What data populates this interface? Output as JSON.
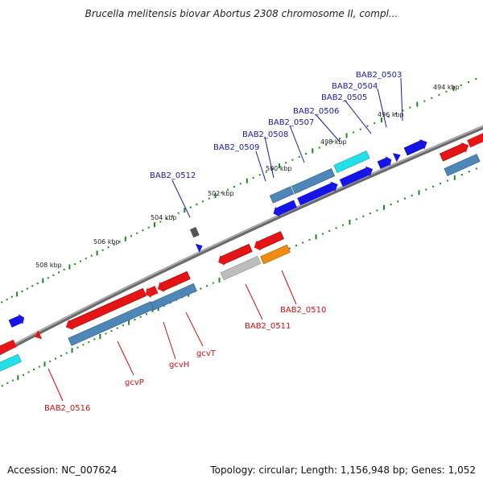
{
  "title": "Brucella melitensis biovar Abortus 2308 chromosome II, compl...",
  "footer": {
    "accession": "Accession: NC_007624",
    "summary": "Topology: circular; Length: 1,156,948 bp; Genes: 1,052"
  },
  "colors": {
    "backbone": "#7a7a7a",
    "tick_dot": "#1a8a1a",
    "top_label": "#1a1aa8",
    "bottom_label": "#cc1010",
    "gene_blue": "#1414e6",
    "gene_red": "#e61414",
    "gene_steel": "#4f86b8",
    "gene_cyan": "#22e0e8",
    "gene_orange": "#f08a10",
    "gene_grey": "#bdbdbd",
    "gene_darkgrey": "#555555"
  },
  "scale_labels": [
    "494 kbp",
    "496 kbp",
    "498 kbp",
    "500 kbp",
    "502 kbp",
    "504 kbp",
    "506 kbp",
    "508 kbp"
  ],
  "top_genes": [
    "BAB2_0503",
    "BAB2_0504",
    "BAB2_0505",
    "BAB2_0506",
    "BAB2_0507",
    "BAB2_0508",
    "BAB2_0509",
    "BAB2_0512"
  ],
  "bottom_genes": [
    "BAB2_0510",
    "BAB2_0511",
    "gcvT",
    "gcvH",
    "gcvP",
    "BAB2_0516"
  ]
}
